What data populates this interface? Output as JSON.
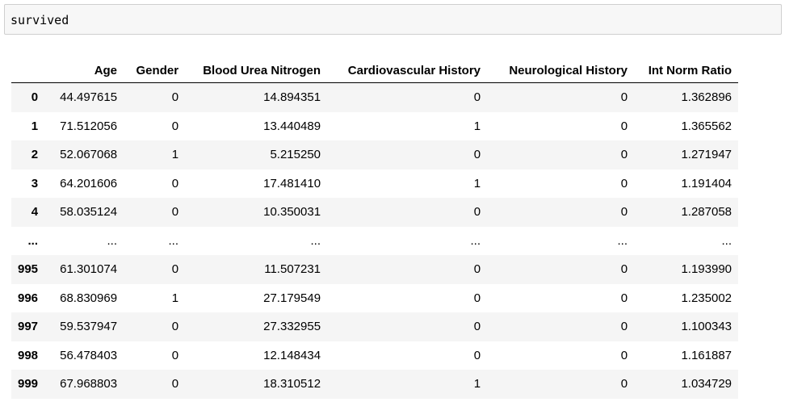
{
  "input_cell": {
    "code": "survived"
  },
  "dataframe": {
    "columns": [
      "",
      "Age",
      "Gender",
      "Blood Urea Nitrogen",
      "Cardiovascular History",
      "Neurological History",
      "Int Norm Ratio"
    ],
    "rows": [
      {
        "index": "0",
        "age": "44.497615",
        "gender": "0",
        "bun": "14.894351",
        "cardio": "0",
        "neuro": "0",
        "inr": "1.362896"
      },
      {
        "index": "1",
        "age": "71.512056",
        "gender": "0",
        "bun": "13.440489",
        "cardio": "1",
        "neuro": "0",
        "inr": "1.365562"
      },
      {
        "index": "2",
        "age": "52.067068",
        "gender": "1",
        "bun": "5.215250",
        "cardio": "0",
        "neuro": "0",
        "inr": "1.271947"
      },
      {
        "index": "3",
        "age": "64.201606",
        "gender": "0",
        "bun": "17.481410",
        "cardio": "1",
        "neuro": "0",
        "inr": "1.191404"
      },
      {
        "index": "4",
        "age": "58.035124",
        "gender": "0",
        "bun": "10.350031",
        "cardio": "0",
        "neuro": "0",
        "inr": "1.287058"
      },
      {
        "index": "...",
        "age": "...",
        "gender": "...",
        "bun": "...",
        "cardio": "...",
        "neuro": "...",
        "inr": "..."
      },
      {
        "index": "995",
        "age": "61.301074",
        "gender": "0",
        "bun": "11.507231",
        "cardio": "0",
        "neuro": "0",
        "inr": "1.193990"
      },
      {
        "index": "996",
        "age": "68.830969",
        "gender": "1",
        "bun": "27.179549",
        "cardio": "0",
        "neuro": "0",
        "inr": "1.235002"
      },
      {
        "index": "997",
        "age": "59.537947",
        "gender": "0",
        "bun": "27.332955",
        "cardio": "0",
        "neuro": "0",
        "inr": "1.100343"
      },
      {
        "index": "998",
        "age": "56.478403",
        "gender": "0",
        "bun": "12.148434",
        "cardio": "0",
        "neuro": "0",
        "inr": "1.161887"
      },
      {
        "index": "999",
        "age": "67.968803",
        "gender": "0",
        "bun": "18.310512",
        "cardio": "1",
        "neuro": "0",
        "inr": "1.034729"
      }
    ]
  },
  "colors": {
    "cell_background": "#f7f7f7",
    "cell_border": "#cfcfcf",
    "striped_row": "#f5f5f5"
  }
}
